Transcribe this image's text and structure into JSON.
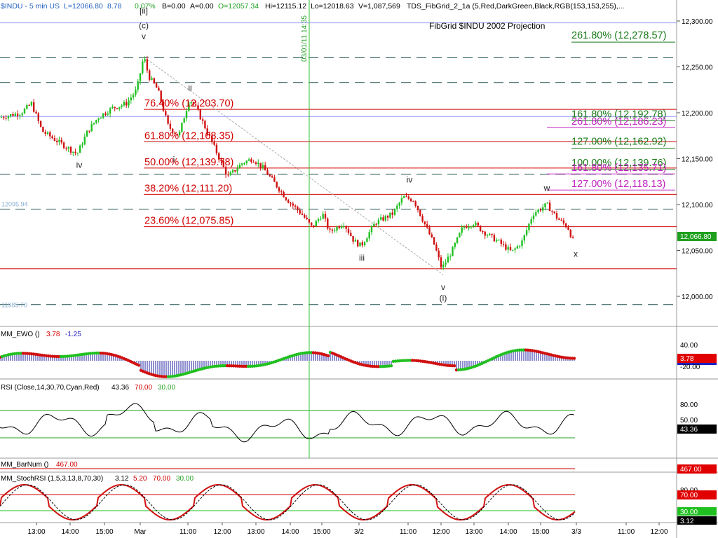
{
  "header": {
    "symbol": "$INDU - 5 min  US",
    "last": "L=12066.80",
    "change": "8.78",
    "change_pct": "0.07%",
    "bid": "B=0.00",
    "ask": "A=0.00",
    "open": "O=12057.34",
    "high": "Hi=12115.12",
    "low": "Lo=12018.63",
    "volume": "V=1,087,569",
    "study": "TDS_FibGrid_2_1a (5,Red,DarkGreen,Black,RGB(153,153,255),..."
  },
  "projection_title": "FibGrid $INDU 2002 Projection",
  "vertical_marker_label": "03/01/11 14:35",
  "colors": {
    "up": "#20c020",
    "down": "#d01010",
    "red_line": "#d00000",
    "green_text": "#1a7a1a",
    "magenta": "#c020c0",
    "dark_text": "#333333",
    "vline": "#30c030",
    "dash": "#1f4f4f",
    "blue_line": "#9999ff",
    "ewo_bar": "#2020a0",
    "last_box": "#1fa01f",
    "red_box": "#e00000"
  },
  "chart_data": {
    "type": "candlestick",
    "title": "FibGrid $INDU 2002 Projection",
    "y_axis": {
      "range": [
        11965,
        12315
      ],
      "ticks": [
        "12,300.00",
        "12,250.00",
        "12,200.00",
        "12,150.00",
        "12,100.00",
        "12,050.00",
        "12,000.00"
      ],
      "tick_values": [
        12300,
        12250,
        12200,
        12150,
        12100,
        12050,
        12000
      ]
    },
    "x_axis": {
      "ticks": [
        "13:00",
        "14:00",
        "15:00",
        "Mar",
        "11:00",
        "12:00",
        "13:00",
        "14:00",
        "15:00",
        "3/2",
        "11:00",
        "12:00",
        "13:00",
        "14:00",
        "15:00",
        "3/3",
        "11:00",
        "12:00"
      ]
    },
    "last_price": "12,066.80",
    "price_path": [
      [
        0,
        12195
      ],
      [
        30,
        12200
      ],
      [
        45,
        12210
      ],
      [
        60,
        12180
      ],
      [
        80,
        12170
      ],
      [
        100,
        12160
      ],
      [
        110,
        12155
      ],
      [
        125,
        12180
      ],
      [
        140,
        12195
      ],
      [
        160,
        12205
      ],
      [
        180,
        12210
      ],
      [
        195,
        12225
      ],
      [
        205,
        12262
      ],
      [
        212,
        12240
      ],
      [
        225,
        12225
      ],
      [
        240,
        12185
      ],
      [
        255,
        12175
      ],
      [
        270,
        12215
      ],
      [
        280,
        12205
      ],
      [
        295,
        12180
      ],
      [
        310,
        12155
      ],
      [
        325,
        12130
      ],
      [
        345,
        12145
      ],
      [
        360,
        12150
      ],
      [
        375,
        12140
      ],
      [
        390,
        12125
      ],
      [
        410,
        12105
      ],
      [
        430,
        12090
      ],
      [
        445,
        12075
      ],
      [
        460,
        12090
      ],
      [
        470,
        12070
      ],
      [
        490,
        12080
      ],
      [
        505,
        12060
      ],
      [
        515,
        12055
      ],
      [
        535,
        12080
      ],
      [
        560,
        12090
      ],
      [
        575,
        12108
      ],
      [
        590,
        12105
      ],
      [
        605,
        12080
      ],
      [
        620,
        12055
      ],
      [
        630,
        12030
      ],
      [
        645,
        12050
      ],
      [
        660,
        12075
      ],
      [
        675,
        12080
      ],
      [
        690,
        12070
      ],
      [
        710,
        12060
      ],
      [
        730,
        12048
      ],
      [
        745,
        12060
      ],
      [
        760,
        12090
      ],
      [
        780,
        12100
      ],
      [
        795,
        12085
      ],
      [
        810,
        12075
      ],
      [
        820,
        12055
      ]
    ],
    "fib_levels_red": [
      {
        "label": "76.40% (12,203.70)",
        "value": 12203.7
      },
      {
        "label": "61.80% (12,168.35)",
        "value": 12168.35
      },
      {
        "label": "50.00% (12,139.78)",
        "value": 12139.78
      },
      {
        "label": "38.20% (12,111.20)",
        "value": 12111.2
      },
      {
        "label": "23.60% (12,075.85)",
        "value": 12075.85
      }
    ],
    "fib_levels_green": [
      {
        "label": "261.80% (12,278.57)",
        "value": 12278.57
      },
      {
        "label": "161.80% (12,192.78)",
        "value": 12192.78
      },
      {
        "label": "127.00% (12,162.92)",
        "value": 12162.92
      },
      {
        "label": "100.00% (12,139.76)",
        "value": 12139.76
      }
    ],
    "fib_levels_magenta": [
      {
        "label": "261.80% (12,186.23)",
        "value": 12186.23
      },
      {
        "label": "161.80% (12,135.71)",
        "value": 12135.71
      },
      {
        "label": "127.00% (12,118.13)",
        "value": 12118.13
      }
    ],
    "extra_red_line": 12030.0,
    "dashed_levels": [
      12260,
      12233,
      12133,
      12095,
      11991
    ],
    "blue_levels": [
      12298,
      12196
    ],
    "side_levels": [
      {
        "label": "12095.94",
        "value": 12095.94
      },
      {
        "label": "11985.70",
        "value": 11985.7
      }
    ],
    "wave_labels": [
      {
        "text": "[ii]",
        "x": 205,
        "y": 12308
      },
      {
        "text": "(c)",
        "x": 205,
        "y": 12292
      },
      {
        "text": "v",
        "x": 205,
        "y": 12280
      },
      {
        "text": "ii",
        "x": 271,
        "y": 12224
      },
      {
        "text": "iv",
        "x": 113,
        "y": 12140
      },
      {
        "text": "i",
        "x": 248,
        "y": 12146
      },
      {
        "text": "iii",
        "x": 516,
        "y": 12039
      },
      {
        "text": "iv",
        "x": 584,
        "y": 12124
      },
      {
        "text": "v",
        "x": 632,
        "y": 12007
      },
      {
        "text": "(i)",
        "x": 632,
        "y": 11995
      },
      {
        "text": "w",
        "x": 780,
        "y": 12115
      },
      {
        "text": "x",
        "x": 821,
        "y": 12043
      }
    ]
  },
  "panels": {
    "ewo": {
      "name": "MM_EWO ()",
      "v1": "3.78",
      "v2": "-1.25",
      "ticks": [
        "40.00",
        "-20.00"
      ],
      "last": "3.78"
    },
    "rsi": {
      "name": "RSI (Close,14,30,70,Cyan,Red)",
      "v1": "43.36",
      "v2": "70.00",
      "v3": "30.00",
      "ticks": [
        "80.00",
        "50.00"
      ],
      "last": "43.36"
    },
    "barnum": {
      "name": "MM_BarNum ()",
      "v1": "467.00",
      "last": "467.00"
    },
    "stoch": {
      "name": "MM_StochRSI (1,5,3,13,8,70,30)",
      "v1": "3.12",
      "v2": "5.20",
      "v3": "70.00",
      "v4": "30.00",
      "ticks": [
        "80.00"
      ],
      "labels": [
        "70.00",
        "30.00",
        "3.12"
      ]
    }
  }
}
